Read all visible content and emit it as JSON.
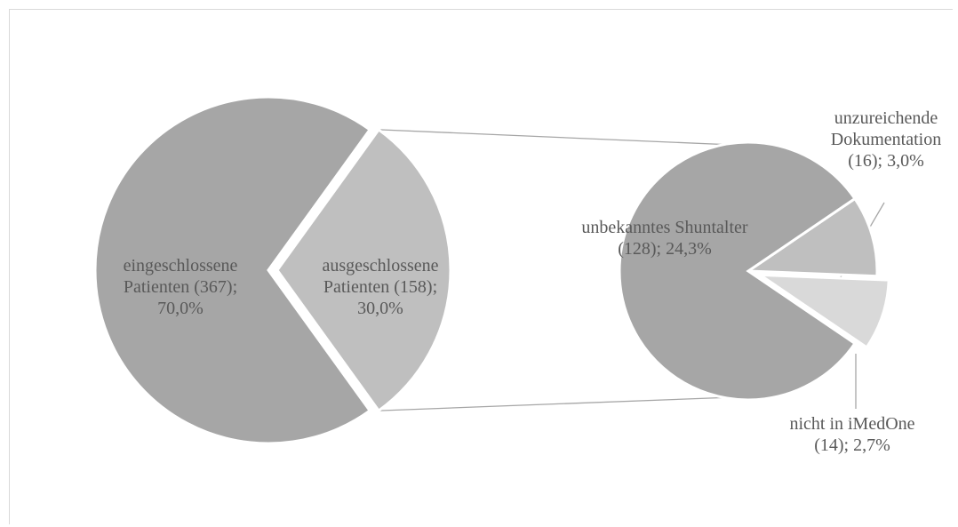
{
  "chart_data": {
    "type": "bar-of-pie",
    "primary": [
      {
        "label_lines": [
          "eingeschlossene",
          "Patienten (367);",
          "70,0%"
        ],
        "value": 367,
        "percent": 70.0,
        "color": "#a6a6a6"
      },
      {
        "label_lines": [
          "ausgeschlossene",
          "Patienten (158);",
          "30,0%"
        ],
        "value": 158,
        "percent": 30.0,
        "color": "#bfbfbf"
      }
    ],
    "secondary": [
      {
        "label_lines": [
          "unbekanntes Shuntalter",
          "(128); 24,3%"
        ],
        "value": 128,
        "percent": 24.3,
        "color": "#a6a6a6"
      },
      {
        "label_lines": [
          "unzureichende",
          "Dokumentation",
          "(16); 3,0%"
        ],
        "value": 16,
        "percent": 3.0,
        "color": "#bfbfbf"
      },
      {
        "label_lines": [
          "nicht in iMedOne",
          "(14); 2,7%"
        ],
        "value": 14,
        "percent": 2.7,
        "color": "#d9d9d9"
      }
    ],
    "title": "",
    "legend": "none"
  }
}
